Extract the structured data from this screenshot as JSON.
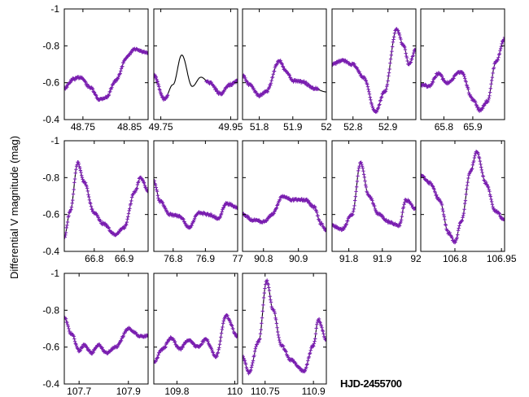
{
  "chart_data": {
    "type": "scatter",
    "ylabel": "Differential V magnitude (mag)",
    "xlabel": "HJD-2455700",
    "ylim": [
      -1,
      -0.4
    ],
    "y_inverted": true,
    "y_ticks": [
      -1,
      -0.8,
      -0.6,
      -0.4
    ],
    "y_tick_labels": [
      "-1",
      "-0.8",
      "-0.6",
      "-0.4"
    ],
    "grid": false,
    "colors": {
      "points": "#7a1fb0",
      "model": "#000000",
      "axes": "#000000"
    },
    "panels": [
      {
        "xlim": [
          48.71,
          48.89
        ],
        "xticks": [
          48.75,
          48.85
        ],
        "xtick_labels": [
          "48.75",
          "48.85"
        ],
        "obs_range": [
          48.71,
          48.89
        ],
        "model": [
          [
            48.71,
            -0.57
          ],
          [
            48.73,
            -0.62
          ],
          [
            48.745,
            -0.63
          ],
          [
            48.765,
            -0.575
          ],
          [
            48.785,
            -0.51
          ],
          [
            48.8,
            -0.52
          ],
          [
            48.82,
            -0.61
          ],
          [
            48.845,
            -0.74
          ],
          [
            48.86,
            -0.78
          ],
          [
            48.89,
            -0.76
          ]
        ]
      },
      {
        "xlim": [
          49.73,
          49.97
        ],
        "xticks": [
          49.75,
          49.95
        ],
        "xtick_labels": [
          "49.75",
          "49.95"
        ],
        "obs_range": [
          49.73,
          49.77
        ],
        "obs_range2": [
          49.88,
          49.97
        ],
        "model": [
          [
            49.73,
            -0.64
          ],
          [
            49.76,
            -0.51
          ],
          [
            49.785,
            -0.59
          ],
          [
            49.81,
            -0.75
          ],
          [
            49.84,
            -0.58
          ],
          [
            49.865,
            -0.63
          ],
          [
            49.89,
            -0.6
          ],
          [
            49.92,
            -0.54
          ],
          [
            49.95,
            -0.59
          ],
          [
            49.97,
            -0.61
          ]
        ]
      },
      {
        "xlim": [
          51.75,
          52.0
        ],
        "xticks": [
          51.8,
          51.9,
          52
        ],
        "xtick_labels": [
          "51.8",
          "51.9",
          "52"
        ],
        "obs_range": [
          51.75,
          51.975
        ],
        "model": [
          [
            51.75,
            -0.64
          ],
          [
            51.77,
            -0.59
          ],
          [
            51.8,
            -0.53
          ],
          [
            51.82,
            -0.55
          ],
          [
            51.86,
            -0.72
          ],
          [
            51.88,
            -0.66
          ],
          [
            51.9,
            -0.61
          ],
          [
            51.93,
            -0.605
          ],
          [
            51.96,
            -0.57
          ],
          [
            52.0,
            -0.55
          ]
        ]
      },
      {
        "xlim": [
          52.74,
          52.98
        ],
        "xticks": [
          52.8,
          52.9
        ],
        "xtick_labels": [
          "52.8",
          "52.9"
        ],
        "obs_range": [
          52.74,
          52.98
        ],
        "model": [
          [
            52.74,
            -0.7
          ],
          [
            52.77,
            -0.72
          ],
          [
            52.8,
            -0.7
          ],
          [
            52.83,
            -0.63
          ],
          [
            52.865,
            -0.44
          ],
          [
            52.89,
            -0.55
          ],
          [
            52.925,
            -0.89
          ],
          [
            52.945,
            -0.8
          ],
          [
            52.96,
            -0.7
          ],
          [
            52.98,
            -0.78
          ]
        ]
      },
      {
        "xlim": [
          65.72,
          66.01
        ],
        "xticks": [
          65.8,
          65.9
        ],
        "xtick_labels": [
          "65.8",
          "65.9"
        ],
        "obs_range": [
          65.72,
          66.01
        ],
        "model": [
          [
            65.72,
            -0.59
          ],
          [
            65.75,
            -0.58
          ],
          [
            65.78,
            -0.65
          ],
          [
            65.81,
            -0.6
          ],
          [
            65.86,
            -0.66
          ],
          [
            65.9,
            -0.51
          ],
          [
            65.925,
            -0.45
          ],
          [
            65.95,
            -0.5
          ],
          [
            65.98,
            -0.71
          ],
          [
            66.01,
            -0.84
          ]
        ]
      },
      {
        "xlim": [
          66.7,
          66.98
        ],
        "xticks": [
          66.8,
          66.9
        ],
        "xtick_labels": [
          "66.8",
          "66.9"
        ],
        "obs_range": [
          66.7,
          66.98
        ],
        "model": [
          [
            66.7,
            -0.48
          ],
          [
            66.72,
            -0.62
          ],
          [
            66.745,
            -0.88
          ],
          [
            66.765,
            -0.78
          ],
          [
            66.8,
            -0.61
          ],
          [
            66.83,
            -0.55
          ],
          [
            66.87,
            -0.49
          ],
          [
            66.9,
            -0.53
          ],
          [
            66.935,
            -0.72
          ],
          [
            66.955,
            -0.8
          ],
          [
            66.98,
            -0.73
          ]
        ]
      },
      {
        "xlim": [
          76.74,
          77.0
        ],
        "xticks": [
          76.8,
          76.9,
          77
        ],
        "xtick_labels": [
          "76.8",
          "76.9",
          "77"
        ],
        "obs_range": [
          76.74,
          77.0
        ],
        "model": [
          [
            76.74,
            -0.78
          ],
          [
            76.76,
            -0.67
          ],
          [
            76.79,
            -0.6
          ],
          [
            76.82,
            -0.59
          ],
          [
            76.85,
            -0.53
          ],
          [
            76.88,
            -0.61
          ],
          [
            76.91,
            -0.6
          ],
          [
            76.94,
            -0.58
          ],
          [
            76.965,
            -0.66
          ],
          [
            77.0,
            -0.64
          ]
        ]
      },
      {
        "xlim": [
          90.74,
          90.98
        ],
        "xticks": [
          90.8,
          90.9
        ],
        "xtick_labels": [
          "90.8",
          "90.9"
        ],
        "obs_range": [
          90.74,
          90.98
        ],
        "model": [
          [
            90.74,
            -0.6
          ],
          [
            90.77,
            -0.57
          ],
          [
            90.8,
            -0.56
          ],
          [
            90.825,
            -0.6
          ],
          [
            90.855,
            -0.7
          ],
          [
            90.88,
            -0.68
          ],
          [
            90.92,
            -0.68
          ],
          [
            90.945,
            -0.64
          ],
          [
            90.965,
            -0.55
          ],
          [
            90.98,
            -0.51
          ]
        ]
      },
      {
        "xlim": [
          91.75,
          92.0
        ],
        "xticks": [
          91.8,
          91.9,
          92
        ],
        "xtick_labels": [
          "91.8",
          "91.9",
          "92"
        ],
        "obs_range": [
          91.75,
          92.0
        ],
        "model": [
          [
            91.75,
            -0.54
          ],
          [
            91.78,
            -0.52
          ],
          [
            91.81,
            -0.6
          ],
          [
            91.835,
            -0.88
          ],
          [
            91.86,
            -0.7
          ],
          [
            91.89,
            -0.6
          ],
          [
            91.92,
            -0.56
          ],
          [
            91.95,
            -0.54
          ],
          [
            91.97,
            -0.68
          ],
          [
            92.0,
            -0.63
          ]
        ]
      },
      {
        "xlim": [
          106.69,
          106.96
        ],
        "xticks": [
          106.8,
          106.95
        ],
        "xtick_labels": [
          "106.8",
          "106.95"
        ],
        "obs_range": [
          106.69,
          106.96
        ],
        "model": [
          [
            106.69,
            -0.81
          ],
          [
            106.72,
            -0.77
          ],
          [
            106.75,
            -0.68
          ],
          [
            106.78,
            -0.5
          ],
          [
            106.8,
            -0.45
          ],
          [
            106.82,
            -0.56
          ],
          [
            106.85,
            -0.83
          ],
          [
            106.87,
            -0.94
          ],
          [
            106.9,
            -0.77
          ],
          [
            106.93,
            -0.62
          ],
          [
            106.96,
            -0.57
          ]
        ]
      },
      {
        "xlim": [
          107.64,
          107.98
        ],
        "xticks": [
          107.7,
          107.9
        ],
        "xtick_labels": [
          "107.7",
          "107.9"
        ],
        "obs_range": [
          107.64,
          107.98
        ],
        "model": [
          [
            107.64,
            -0.76
          ],
          [
            107.67,
            -0.67
          ],
          [
            107.7,
            -0.58
          ],
          [
            107.72,
            -0.61
          ],
          [
            107.75,
            -0.57
          ],
          [
            107.78,
            -0.61
          ],
          [
            107.81,
            -0.57
          ],
          [
            107.85,
            -0.6
          ],
          [
            107.9,
            -0.7
          ],
          [
            107.95,
            -0.66
          ],
          [
            107.98,
            -0.66
          ]
        ]
      },
      {
        "xlim": [
          109.72,
          110.01
        ],
        "xticks": [
          109.8,
          110
        ],
        "xtick_labels": [
          "109.8",
          "110"
        ],
        "obs_range": [
          109.72,
          110.01
        ],
        "model": [
          [
            109.72,
            -0.52
          ],
          [
            109.75,
            -0.59
          ],
          [
            109.78,
            -0.65
          ],
          [
            109.81,
            -0.59
          ],
          [
            109.84,
            -0.64
          ],
          [
            109.87,
            -0.6
          ],
          [
            109.9,
            -0.64
          ],
          [
            109.935,
            -0.55
          ],
          [
            109.97,
            -0.77
          ],
          [
            110.01,
            -0.66
          ]
        ]
      },
      {
        "xlim": [
          110.68,
          110.94
        ],
        "xticks": [
          110.75,
          110.9
        ],
        "xtick_labels": [
          "110.75",
          "110.9"
        ],
        "obs_range": [
          110.68,
          110.94
        ],
        "model": [
          [
            110.68,
            -0.55
          ],
          [
            110.7,
            -0.46
          ],
          [
            110.73,
            -0.63
          ],
          [
            110.755,
            -0.96
          ],
          [
            110.775,
            -0.8
          ],
          [
            110.8,
            -0.61
          ],
          [
            110.83,
            -0.53
          ],
          [
            110.87,
            -0.47
          ],
          [
            110.9,
            -0.61
          ],
          [
            110.915,
            -0.75
          ],
          [
            110.94,
            -0.64
          ]
        ]
      }
    ]
  }
}
